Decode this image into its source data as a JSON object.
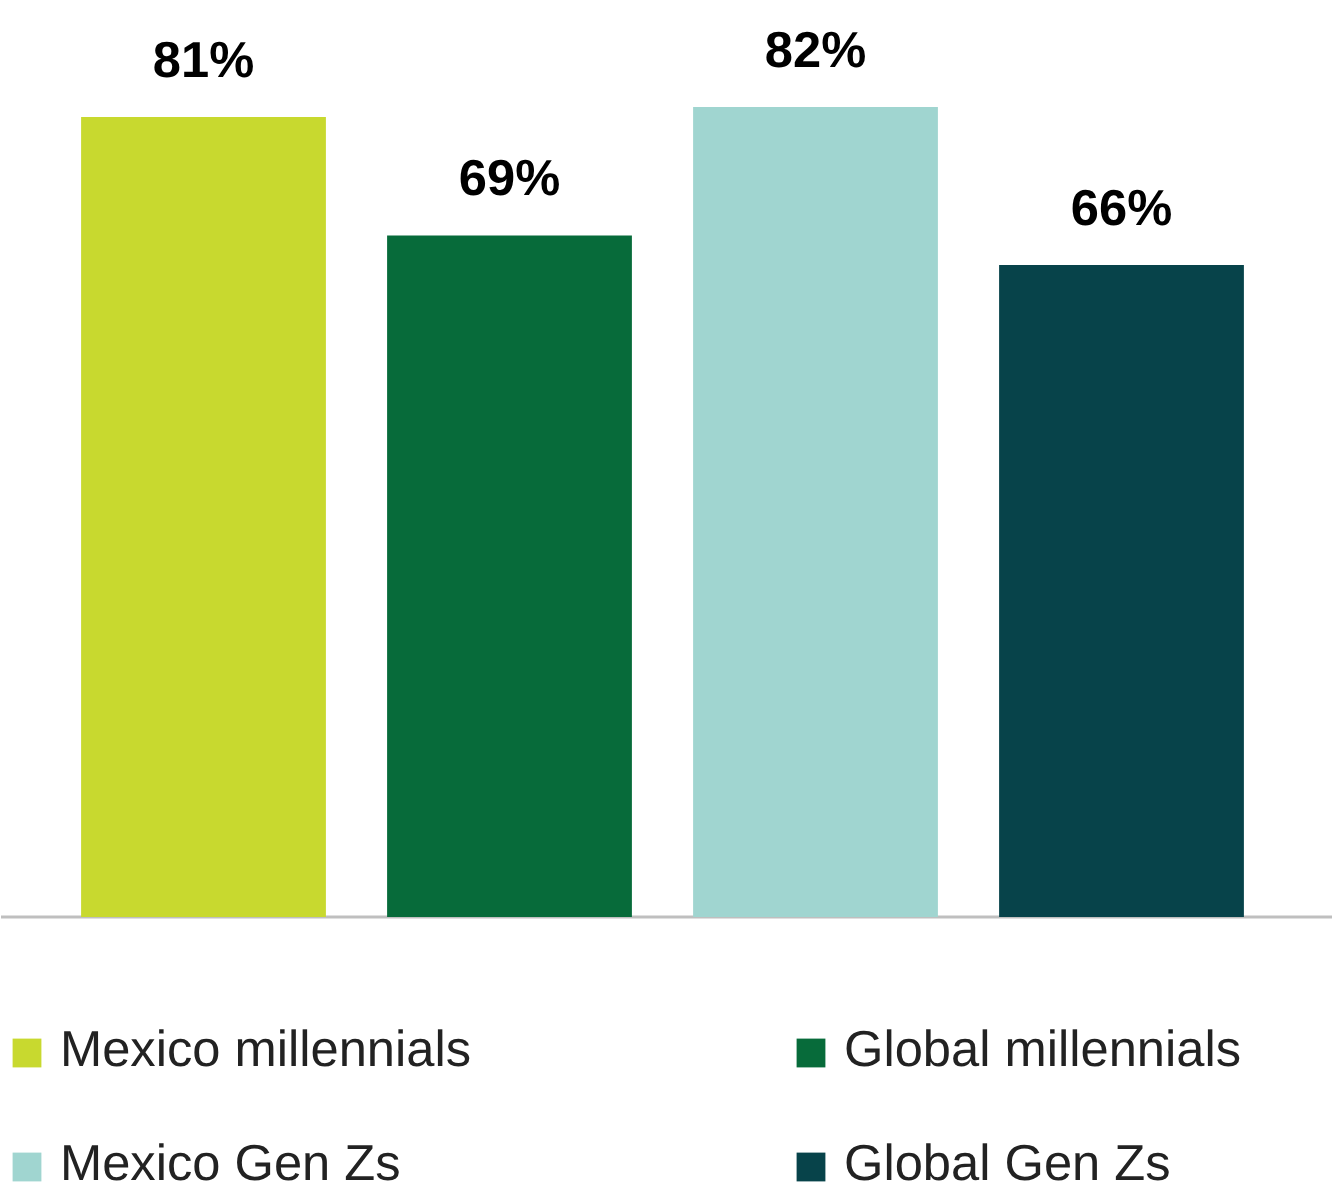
{
  "chart_data": {
    "type": "bar",
    "categories": [
      null
    ],
    "series": [
      {
        "name": "Mexico millennials",
        "color": "#c8d92f",
        "values": [
          81
        ],
        "value_labels": [
          "81%"
        ]
      },
      {
        "name": "Global millennials",
        "color": "#076b3a",
        "values": [
          69
        ],
        "value_labels": [
          "69%"
        ]
      },
      {
        "name": "Mexico Gen Zs",
        "color": "#a0d5d0",
        "values": [
          82
        ],
        "value_labels": [
          "82%"
        ]
      },
      {
        "name": "Global Gen Zs",
        "color": "#07434a",
        "values": [
          66
        ],
        "value_labels": [
          "66%"
        ]
      }
    ],
    "legend": "bottom",
    "grid": false,
    "tick_labels": false
  }
}
